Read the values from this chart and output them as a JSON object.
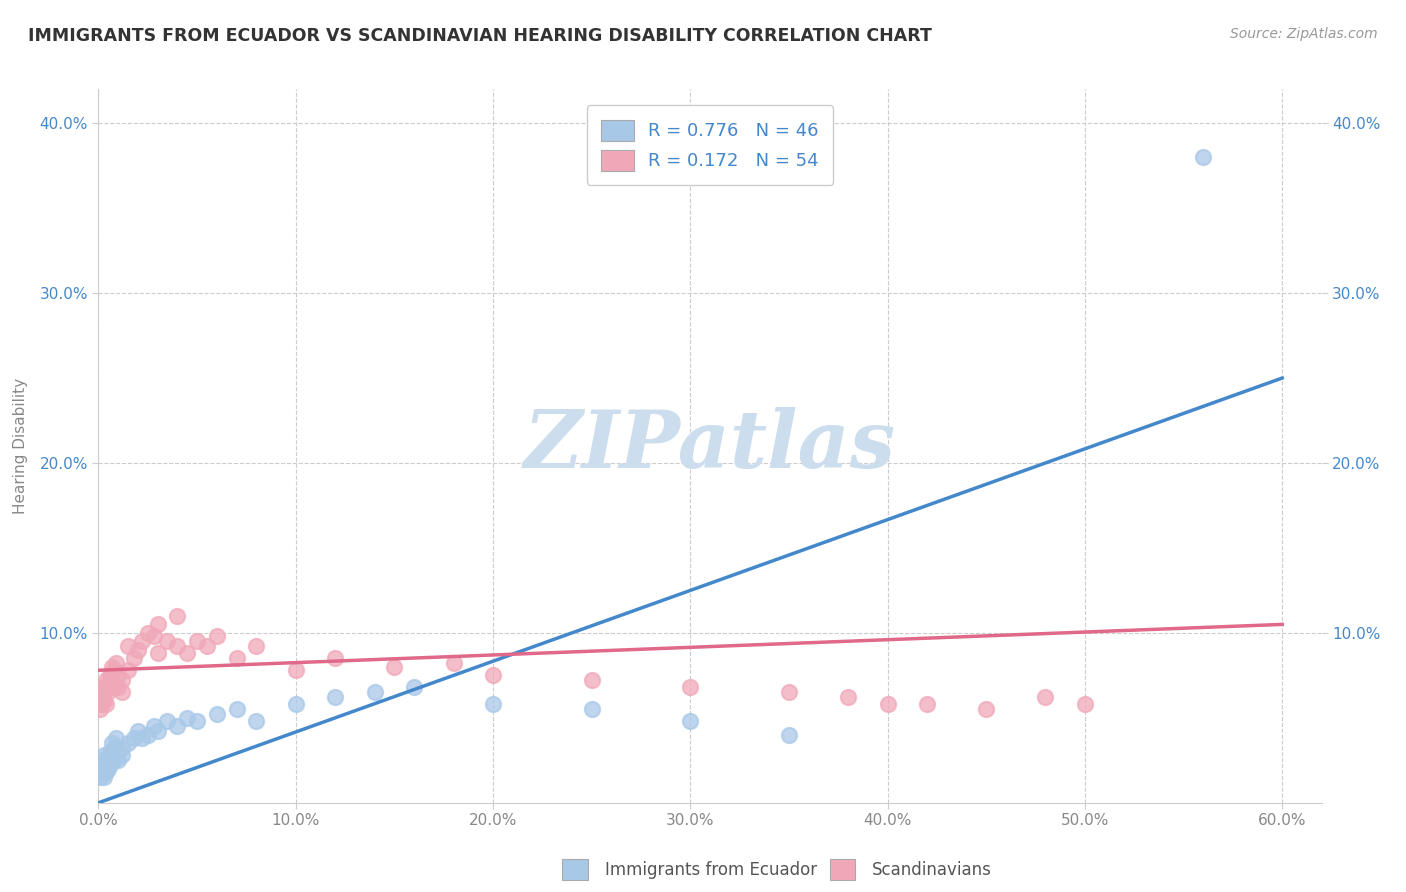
{
  "title": "IMMIGRANTS FROM ECUADOR VS SCANDINAVIAN HEARING DISABILITY CORRELATION CHART",
  "source": "Source: ZipAtlas.com",
  "ylabel": "Hearing Disability",
  "xlim": [
    0.0,
    0.62
  ],
  "ylim": [
    0.0,
    0.42
  ],
  "xtick_labels": [
    "0.0%",
    "10.0%",
    "20.0%",
    "30.0%",
    "40.0%",
    "50.0%",
    "60.0%"
  ],
  "xtick_values": [
    0.0,
    0.1,
    0.2,
    0.3,
    0.4,
    0.5,
    0.6
  ],
  "ytick_labels": [
    "10.0%",
    "20.0%",
    "30.0%",
    "40.0%"
  ],
  "ytick_values": [
    0.1,
    0.2,
    0.3,
    0.4
  ],
  "ecuador_color": "#a8c8e8",
  "scandinavian_color": "#f0a8b8",
  "ecuador_line_color": "#4488cc",
  "scandinavian_line_color": "#e06888",
  "text_color_blue": "#4488cc",
  "watermark_color": "#ccdded",
  "legend_R1": "0.776",
  "legend_N1": "46",
  "legend_R2": "0.172",
  "legend_N2": "54",
  "ecuador_scatter": [
    [
      0.001,
      0.02
    ],
    [
      0.001,
      0.015
    ],
    [
      0.002,
      0.018
    ],
    [
      0.002,
      0.025
    ],
    [
      0.002,
      0.022
    ],
    [
      0.003,
      0.02
    ],
    [
      0.003,
      0.015
    ],
    [
      0.003,
      0.028
    ],
    [
      0.004,
      0.022
    ],
    [
      0.004,
      0.018
    ],
    [
      0.005,
      0.025
    ],
    [
      0.005,
      0.02
    ],
    [
      0.006,
      0.03
    ],
    [
      0.006,
      0.022
    ],
    [
      0.007,
      0.028
    ],
    [
      0.007,
      0.035
    ],
    [
      0.008,
      0.032
    ],
    [
      0.008,
      0.025
    ],
    [
      0.009,
      0.038
    ],
    [
      0.01,
      0.03
    ],
    [
      0.01,
      0.025
    ],
    [
      0.012,
      0.032
    ],
    [
      0.012,
      0.028
    ],
    [
      0.015,
      0.035
    ],
    [
      0.018,
      0.038
    ],
    [
      0.02,
      0.042
    ],
    [
      0.022,
      0.038
    ],
    [
      0.025,
      0.04
    ],
    [
      0.028,
      0.045
    ],
    [
      0.03,
      0.042
    ],
    [
      0.035,
      0.048
    ],
    [
      0.04,
      0.045
    ],
    [
      0.045,
      0.05
    ],
    [
      0.05,
      0.048
    ],
    [
      0.06,
      0.052
    ],
    [
      0.07,
      0.055
    ],
    [
      0.08,
      0.048
    ],
    [
      0.1,
      0.058
    ],
    [
      0.12,
      0.062
    ],
    [
      0.14,
      0.065
    ],
    [
      0.16,
      0.068
    ],
    [
      0.2,
      0.058
    ],
    [
      0.25,
      0.055
    ],
    [
      0.3,
      0.048
    ],
    [
      0.35,
      0.04
    ],
    [
      0.56,
      0.38
    ]
  ],
  "scandinavian_scatter": [
    [
      0.001,
      0.058
    ],
    [
      0.001,
      0.055
    ],
    [
      0.002,
      0.062
    ],
    [
      0.002,
      0.058
    ],
    [
      0.003,
      0.068
    ],
    [
      0.003,
      0.06
    ],
    [
      0.003,
      0.065
    ],
    [
      0.004,
      0.072
    ],
    [
      0.004,
      0.058
    ],
    [
      0.005,
      0.07
    ],
    [
      0.005,
      0.065
    ],
    [
      0.006,
      0.075
    ],
    [
      0.006,
      0.068
    ],
    [
      0.007,
      0.08
    ],
    [
      0.007,
      0.072
    ],
    [
      0.008,
      0.078
    ],
    [
      0.008,
      0.068
    ],
    [
      0.009,
      0.082
    ],
    [
      0.01,
      0.075
    ],
    [
      0.01,
      0.068
    ],
    [
      0.012,
      0.072
    ],
    [
      0.012,
      0.065
    ],
    [
      0.015,
      0.078
    ],
    [
      0.015,
      0.092
    ],
    [
      0.018,
      0.085
    ],
    [
      0.02,
      0.09
    ],
    [
      0.022,
      0.095
    ],
    [
      0.025,
      0.1
    ],
    [
      0.028,
      0.098
    ],
    [
      0.03,
      0.105
    ],
    [
      0.03,
      0.088
    ],
    [
      0.035,
      0.095
    ],
    [
      0.04,
      0.092
    ],
    [
      0.04,
      0.11
    ],
    [
      0.045,
      0.088
    ],
    [
      0.05,
      0.095
    ],
    [
      0.055,
      0.092
    ],
    [
      0.06,
      0.098
    ],
    [
      0.07,
      0.085
    ],
    [
      0.08,
      0.092
    ],
    [
      0.1,
      0.078
    ],
    [
      0.12,
      0.085
    ],
    [
      0.15,
      0.08
    ],
    [
      0.18,
      0.082
    ],
    [
      0.2,
      0.075
    ],
    [
      0.25,
      0.072
    ],
    [
      0.3,
      0.068
    ],
    [
      0.35,
      0.065
    ],
    [
      0.38,
      0.062
    ],
    [
      0.4,
      0.058
    ],
    [
      0.42,
      0.058
    ],
    [
      0.45,
      0.055
    ],
    [
      0.48,
      0.062
    ],
    [
      0.5,
      0.058
    ]
  ],
  "ecuador_trendline": [
    0.0,
    0.6,
    0.0,
    0.25
  ],
  "scandinavian_trendline": [
    0.0,
    0.6,
    0.078,
    0.105
  ]
}
